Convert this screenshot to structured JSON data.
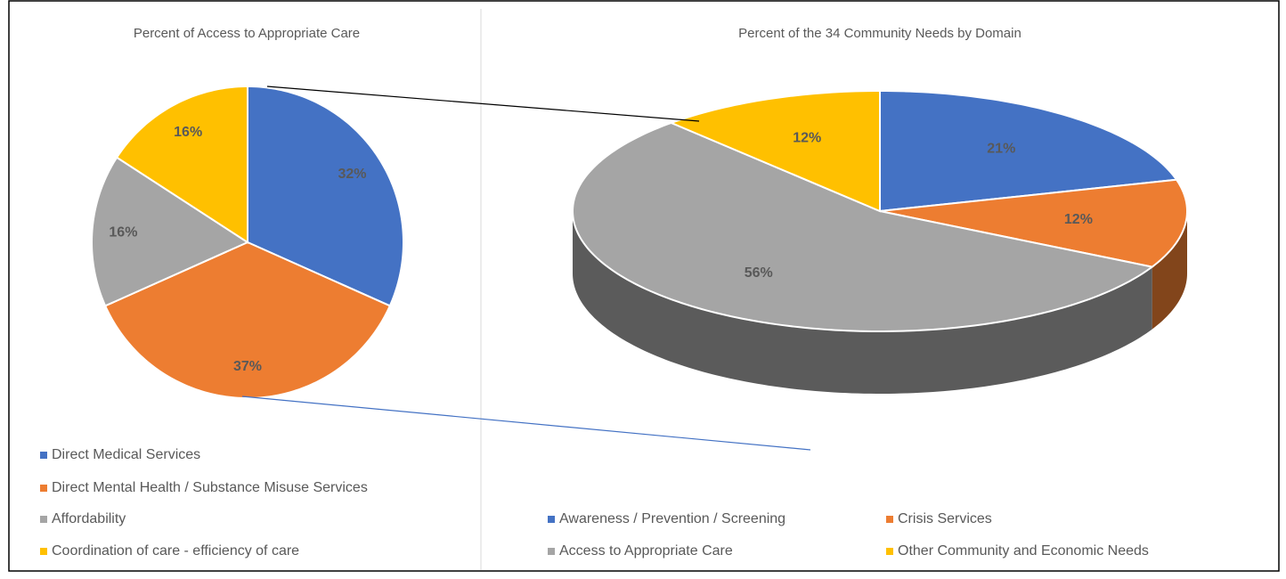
{
  "chart_data": [
    {
      "type": "pie",
      "title": "Percent of Access to Appropriate Care",
      "categories": [
        "Direct Medical Services",
        "Direct Mental Health / Substance Misuse Services",
        "Affordability",
        "Coordination of care - efficiency of care"
      ],
      "values": [
        32,
        37,
        16,
        16
      ],
      "value_labels": [
        "32%",
        "37%",
        "16%",
        "16%"
      ],
      "colors": [
        "#4472c4",
        "#ed7d31",
        "#a5a5a5",
        "#ffc000"
      ]
    },
    {
      "type": "pie3d",
      "title": "Percent of the 34 Community Needs by Domain",
      "categories": [
        "Awareness / Prevention / Screening",
        "Crisis Services",
        "Access to Appropriate Care",
        "Other Community and Economic Needs"
      ],
      "values": [
        21,
        12,
        56,
        12
      ],
      "value_labels": [
        "21%",
        "12%",
        "56%",
        "12%"
      ],
      "colors": [
        "#4472c4",
        "#ed7d31",
        "#a5a5a5",
        "#ffc000"
      ]
    }
  ]
}
